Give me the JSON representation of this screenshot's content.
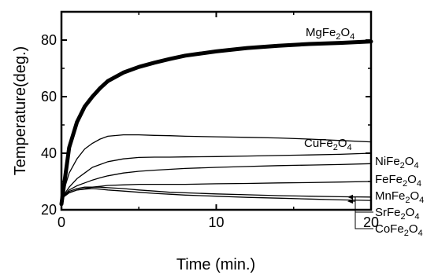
{
  "chart_data": {
    "type": "line",
    "xlabel": "Time (min.)",
    "ylabel": "Temperature(deg.)",
    "xlim": [
      0,
      20
    ],
    "ylim": [
      20,
      90
    ],
    "x_ticks": [
      "0",
      "10",
      "20"
    ],
    "y_ticks": [
      "20",
      "40",
      "60",
      "80"
    ],
    "grid": false,
    "legend": "inline labels at right",
    "x": [
      0,
      0.5,
      1,
      1.5,
      2,
      2.5,
      3,
      4,
      5,
      6,
      7,
      8,
      10,
      12,
      14,
      16,
      18,
      20
    ],
    "series": [
      {
        "name": "MgFe2O4",
        "label_main": "MgFe",
        "label_sub": "2",
        "label_tail": "O",
        "label_sub2": "4",
        "values": [
          22,
          42,
          51,
          56.5,
          60,
          63,
          65.5,
          68.5,
          70.5,
          72,
          73.3,
          74.5,
          76,
          77.2,
          78,
          78.6,
          79,
          79.5
        ]
      },
      {
        "name": "CuFe2O4",
        "label_main": "CuFe",
        "label_sub": "2",
        "label_tail": "O",
        "label_sub2": "4",
        "values": [
          24,
          33,
          38,
          41.5,
          43.5,
          45,
          46,
          46.5,
          46.5,
          46.3,
          46.2,
          46,
          45.8,
          45.6,
          45.4,
          45,
          44.5,
          44
        ]
      },
      {
        "name": "NiFe2O4",
        "label_main": "NiFe",
        "label_sub": "2",
        "label_tail": "O",
        "label_sub2": "4",
        "values": [
          24,
          28,
          31,
          33,
          35,
          36,
          37,
          38,
          38.5,
          38.6,
          38.6,
          38.7,
          38.8,
          39,
          39.2,
          39.4,
          39.6,
          40
        ]
      },
      {
        "name": "FeFe2O4",
        "label_main": "FeFe",
        "label_sub": "2",
        "label_tail": "O",
        "label_sub2": "4",
        "values": [
          24,
          27,
          28.5,
          29.5,
          30.5,
          31.3,
          32,
          33,
          33.6,
          34,
          34.3,
          34.6,
          35,
          35.3,
          35.6,
          35.8,
          36,
          36.3
        ]
      },
      {
        "name": "MnFe2O4",
        "label_main": "MnFe",
        "label_sub": "2",
        "label_tail": "O",
        "label_sub2": "4",
        "values": [
          24,
          26,
          27,
          27.5,
          28,
          28.3,
          28.6,
          28.8,
          29,
          29,
          29,
          29,
          29.2,
          29.3,
          29.5,
          29.6,
          29.8,
          30
        ]
      },
      {
        "name": "SrFe2O4",
        "label_main": "SrFe",
        "label_sub": "2",
        "label_tail": "O",
        "label_sub2": "4",
        "values": [
          24,
          26.5,
          27.5,
          28,
          28,
          28,
          27.8,
          27.5,
          27,
          26.6,
          26.2,
          26,
          25.6,
          25.3,
          25,
          24.8,
          24.6,
          24.5
        ]
      },
      {
        "name": "CoFe2O4",
        "label_main": "CoFe",
        "label_sub": "2",
        "label_tail": "O",
        "label_sub2": "4",
        "values": [
          24,
          26,
          27,
          27.3,
          27.5,
          27.3,
          27,
          26.6,
          26.2,
          25.8,
          25.5,
          25.2,
          24.8,
          24.4,
          24.1,
          23.8,
          23.5,
          23.3
        ]
      }
    ]
  }
}
